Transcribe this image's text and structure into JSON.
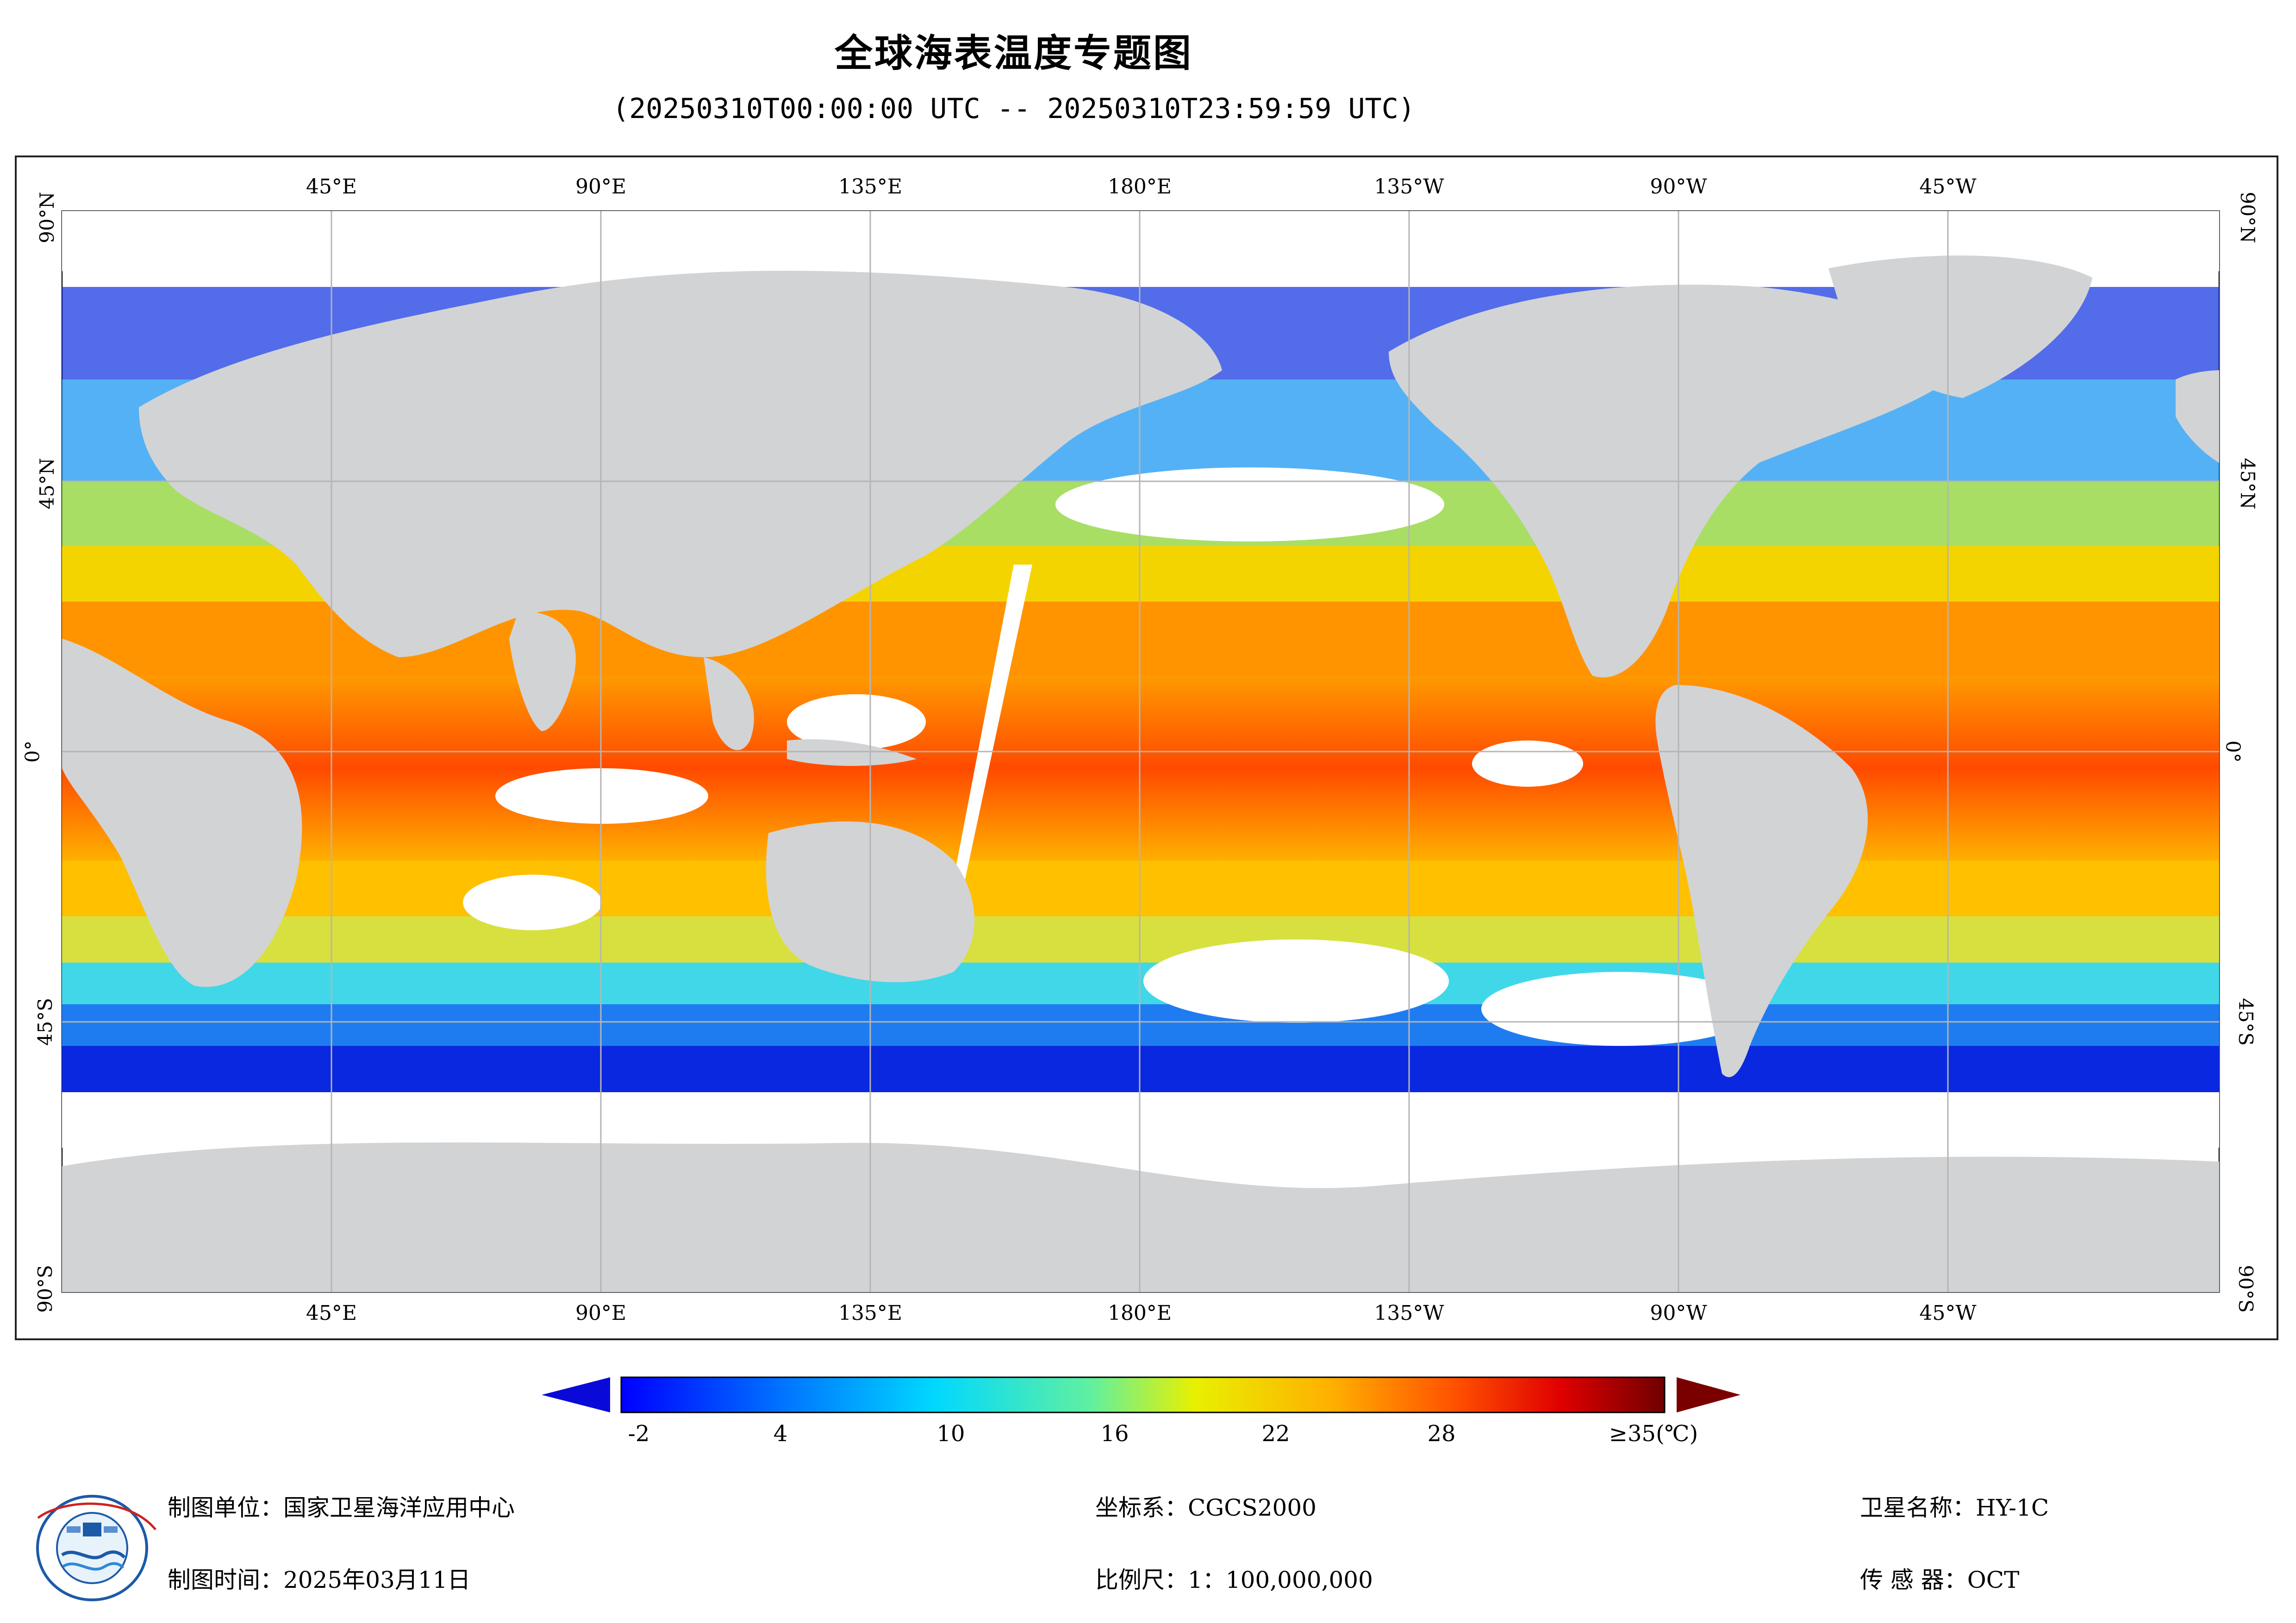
{
  "title": "全球海表温度专题图",
  "time_range": "(20250310T00:00:00 UTC -- 20250310T23:59:59 UTC)",
  "map": {
    "top_labels": [
      "45°E",
      "90°E",
      "135°E",
      "180°E",
      "135°W",
      "90°W",
      "45°W"
    ],
    "bottom_labels": [
      "45°E",
      "90°E",
      "135°E",
      "180°E",
      "135°W",
      "90°W",
      "45°W"
    ],
    "left_labels": [
      "90°N",
      "45°N",
      "0°",
      "45°S",
      "90°S"
    ],
    "right_labels": [
      "90°N",
      "45°N",
      "0°",
      "45°S",
      "90°S"
    ],
    "land_color": "#d2d3d5",
    "nodata_color": "#ffffff",
    "grid_color": "#b5b5b5"
  },
  "colorbar": {
    "ticks": [
      "-2",
      "4",
      "10",
      "16",
      "22",
      "28",
      "≥35(℃)"
    ],
    "min_arrow_color": "#0a0ad8",
    "max_arrow_color": "#7a0000"
  },
  "footer": {
    "unit": "制图单位：国家卫星海洋应用中心",
    "time": "制图时间：2025年03月11日",
    "crs": "坐标系：CGCS2000",
    "scale": "比例尺：1：100,000,000",
    "satellite": "卫星名称：HY-1C",
    "sensor": "传 感 器：OCT"
  }
}
